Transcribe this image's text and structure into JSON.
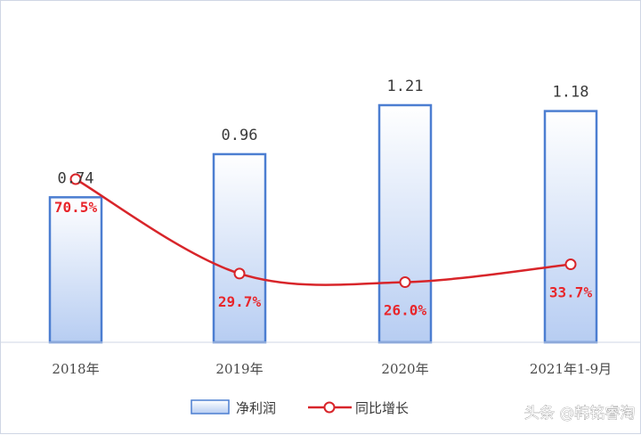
{
  "chart_data": {
    "type": "bar",
    "categories": [
      "2018年",
      "2019年",
      "2020年",
      "2021年1-9月"
    ],
    "series": [
      {
        "name": "净利润",
        "kind": "bar",
        "values": [
          0.74,
          0.96,
          1.21,
          1.18
        ],
        "labels": [
          "0.74",
          "0.96",
          "1.21",
          "1.18"
        ]
      },
      {
        "name": "同比增长",
        "kind": "line",
        "values": [
          70.5,
          29.7,
          26.0,
          33.7
        ],
        "labels": [
          "70.5%",
          "29.7%",
          "26.0%",
          "33.7%"
        ]
      }
    ],
    "ylim": [
      0,
      1.3
    ],
    "y2lim": [
      0,
      100
    ],
    "grid": false,
    "legend": "bottom-center",
    "colors": {
      "bar_fill_top": "#ffffff",
      "bar_fill_bottom": "#b7cdf2",
      "bar_stroke": "#4c7ed1",
      "line": "#d8252a",
      "marker_fill": "#ffffff",
      "axis": "#cfd6e4"
    }
  },
  "watermark": {
    "text": "头条 @韩铭睿淘"
  }
}
